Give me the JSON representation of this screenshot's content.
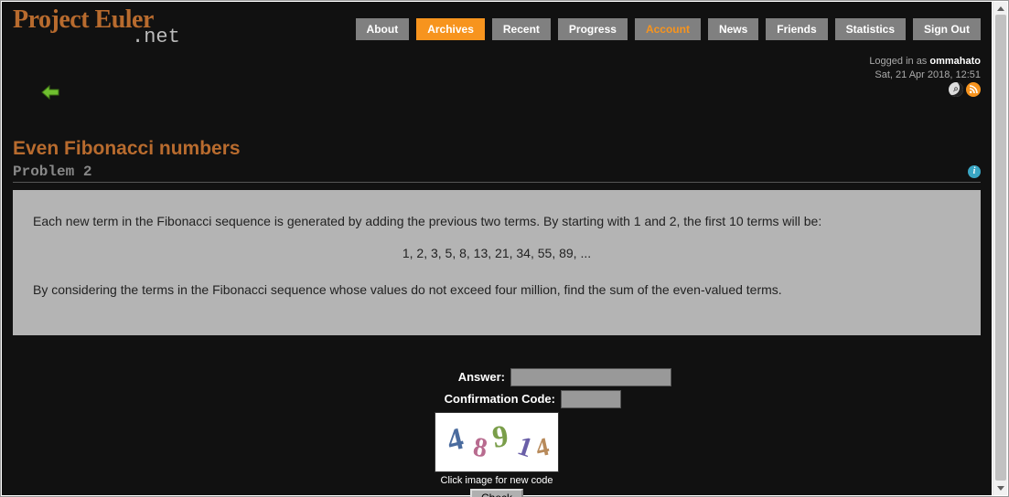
{
  "logo": {
    "main": "Project Euler",
    "suffix": ".net"
  },
  "nav": [
    {
      "label": "About"
    },
    {
      "label": "Archives",
      "active": true
    },
    {
      "label": "Recent"
    },
    {
      "label": "Progress"
    },
    {
      "label": "Account",
      "account": true
    },
    {
      "label": "News"
    },
    {
      "label": "Friends"
    },
    {
      "label": "Statistics"
    },
    {
      "label": "Sign Out"
    }
  ],
  "status": {
    "prefix": "Logged in as ",
    "user": "ommahato",
    "datetime": "Sat, 21 Apr 2018, 12:51"
  },
  "problem": {
    "title": "Even Fibonacci numbers",
    "label": "Problem 2",
    "para1": "Each new term in the Fibonacci sequence is generated by adding the previous two terms. By starting with 1 and 2, the first 10 terms will be:",
    "sequence": "1, 2, 3, 5, 8, 13, 21, 34, 55, 89, ...",
    "para2": "By considering the terms in the Fibonacci sequence whose values do not exceed four million, find the sum of the even-valued terms."
  },
  "form": {
    "answer_label": "Answer:",
    "confirm_label": "Confirmation Code:",
    "captcha_digits": "48914",
    "captcha_colors": [
      "#4a6b9e",
      "#b86b8f",
      "#7a9e4a",
      "#6a5fa8",
      "#b88a5a"
    ],
    "captcha_note": "Click image for new code",
    "check_label": "Check"
  }
}
